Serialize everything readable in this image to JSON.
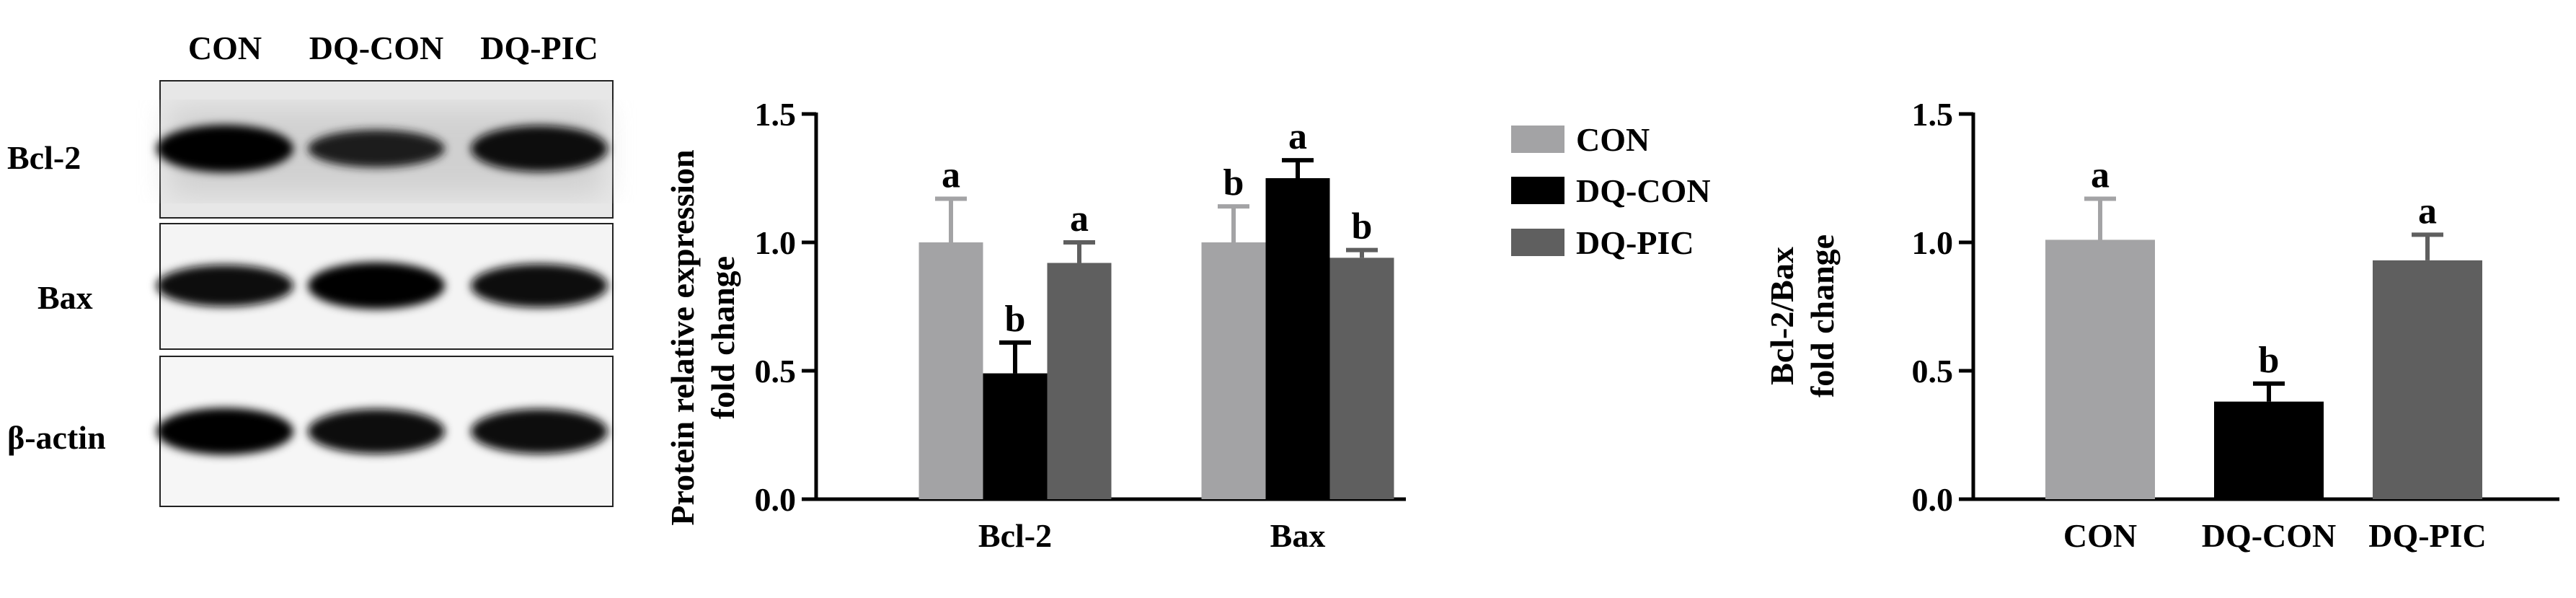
{
  "western_blot": {
    "lane_labels": [
      "CON",
      "DQ-CON",
      "DQ-PIC"
    ],
    "row_labels": [
      "Bcl-2",
      "Bax",
      "β-actin"
    ],
    "band_intensity": [
      [
        1.0,
        0.62,
        0.95
      ],
      [
        0.78,
        0.98,
        0.85
      ],
      [
        0.98,
        0.9,
        0.9
      ]
    ]
  },
  "chart_data": [
    {
      "type": "bar",
      "categories": [
        "Bcl-2",
        "Bax"
      ],
      "series": [
        {
          "name": "CON",
          "values": [
            1.0,
            1.0
          ],
          "errors": [
            0.17,
            0.14
          ],
          "letters": [
            "a",
            "b"
          ]
        },
        {
          "name": "DQ-CON",
          "values": [
            0.49,
            1.25
          ],
          "errors": [
            0.12,
            0.07
          ],
          "letters": [
            "b",
            "a"
          ]
        },
        {
          "name": "DQ-PIC",
          "values": [
            0.92,
            0.94
          ],
          "errors": [
            0.08,
            0.03
          ],
          "letters": [
            "a",
            "b"
          ]
        }
      ],
      "ylabel_line1": "Protein relative expression",
      "ylabel_line2": "fold change",
      "ylim": [
        0,
        1.5
      ],
      "yticks": [
        "0.0",
        "0.5",
        "1.0",
        "1.5"
      ],
      "legend_placement": "right",
      "colors": [
        "#a3a3a5",
        "#000000",
        "#5f5f5f"
      ]
    },
    {
      "type": "bar",
      "categories": [
        "CON",
        "DQ-CON",
        "DQ-PIC"
      ],
      "values": [
        1.01,
        0.38,
        0.93
      ],
      "errors": [
        0.16,
        0.07,
        0.1
      ],
      "letters": [
        "a",
        "b",
        "a"
      ],
      "ylabel_line1": "Bcl-2/Bax",
      "ylabel_line2": "fold change",
      "ylim": [
        0,
        1.5
      ],
      "yticks": [
        "0.0",
        "0.5",
        "1.0",
        "1.5"
      ],
      "colors": [
        "#a3a3a5",
        "#000000",
        "#5f5f5f"
      ]
    }
  ]
}
